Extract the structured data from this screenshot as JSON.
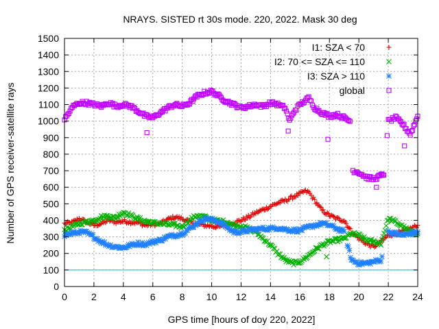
{
  "chart_data": {
    "type": "scatter",
    "title": "NRAYS. SISTED rt 30s mode. 220, 2022. Mask 30 deg",
    "xlabel": "GPS time [hours of doy 220, 2022]",
    "ylabel": "Number of GPS receiver-satellite rays",
    "xlim": [
      0,
      24
    ],
    "ylim": [
      0,
      1500
    ],
    "xticks": [
      "0",
      "2",
      "4",
      "6",
      "8",
      "10",
      "12",
      "14",
      "16",
      "18",
      "20",
      "22",
      "24"
    ],
    "yticks": [
      "0",
      "100",
      "200",
      "300",
      "400",
      "500",
      "600",
      "700",
      "800",
      "900",
      "1000",
      "1100",
      "1200",
      "1300",
      "1400",
      "1500"
    ],
    "grid": true,
    "legend_position": "top-right",
    "reference_line": {
      "y": 100,
      "color": "#00c0d0"
    },
    "series": [
      {
        "name": "I1: SZA < 70",
        "marker": "+",
        "color": "#e00000",
        "x": [
          0,
          0.5,
          1,
          1.5,
          2,
          2.5,
          3,
          3.5,
          4,
          4.5,
          5,
          5.5,
          6,
          6.5,
          7,
          7.5,
          8,
          8.5,
          9,
          9.5,
          10,
          10.5,
          11,
          11.5,
          12,
          12.5,
          13,
          13.5,
          14,
          14.5,
          15,
          15.5,
          16,
          16.3,
          16.6,
          17,
          17.5,
          18,
          18.5,
          19,
          19.5,
          20,
          20.5,
          21,
          21.5,
          22,
          22.5,
          23,
          23.5,
          24
        ],
        "y": [
          380,
          385,
          410,
          390,
          370,
          380,
          400,
          390,
          395,
          390,
          385,
          370,
          375,
          380,
          405,
          420,
          410,
          390,
          380,
          370,
          365,
          360,
          370,
          385,
          400,
          420,
          445,
          465,
          485,
          505,
          520,
          540,
          560,
          575,
          570,
          520,
          460,
          430,
          410,
          400,
          330,
          290,
          260,
          240,
          270,
          310,
          320,
          330,
          350,
          370
        ]
      },
      {
        "name": "I2: 70 <= SZA <= 110",
        "marker": "x",
        "color": "#00b000",
        "x": [
          0,
          0.5,
          1,
          1.5,
          2,
          2.5,
          3,
          3.5,
          4,
          4.5,
          5,
          5.5,
          6,
          6.5,
          7,
          7.5,
          8,
          8.5,
          9,
          9.5,
          10,
          10.5,
          11,
          11.5,
          12,
          12.5,
          13,
          13.5,
          14,
          14.5,
          15,
          15.5,
          16,
          16.5,
          17,
          17.5,
          18,
          18.5,
          19,
          19.5,
          20,
          20.5,
          21,
          21.5,
          22,
          22.5,
          23,
          23.5,
          24
        ],
        "y": [
          340,
          360,
          380,
          390,
          400,
          420,
          425,
          415,
          450,
          430,
          410,
          395,
          385,
          380,
          375,
          370,
          360,
          400,
          430,
          420,
          400,
          395,
          390,
          370,
          365,
          350,
          330,
          290,
          250,
          200,
          160,
          140,
          150,
          180,
          220,
          250,
          270,
          280,
          290,
          320,
          310,
          280,
          270,
          260,
          410,
          390,
          360,
          330,
          320
        ]
      },
      {
        "name": "I3: SZA > 110",
        "marker": "*",
        "color": "#2080ff",
        "x": [
          0,
          0.5,
          1,
          1.5,
          2,
          2.5,
          3,
          3.5,
          4,
          4.5,
          5,
          5.5,
          6,
          6.5,
          7,
          7.5,
          8,
          8.5,
          9,
          9.5,
          10,
          10.5,
          11,
          11.5,
          12,
          12.5,
          13,
          13.5,
          14,
          14.5,
          15,
          15.5,
          16,
          16.5,
          17,
          17.5,
          18,
          18.5,
          19,
          19.5,
          20,
          20.5,
          21,
          21.5,
          22,
          22.5,
          23,
          23.5,
          24
        ],
        "y": [
          310,
          320,
          330,
          325,
          300,
          270,
          250,
          240,
          235,
          250,
          260,
          255,
          270,
          280,
          300,
          310,
          320,
          350,
          380,
          410,
          405,
          390,
          360,
          330,
          330,
          340,
          345,
          350,
          350,
          355,
          345,
          340,
          340,
          355,
          370,
          380,
          370,
          350,
          330,
          160,
          140,
          140,
          150,
          160,
          330,
          320,
          310,
          320,
          330
        ]
      },
      {
        "name": "global",
        "marker": "square",
        "color": "#c000ff",
        "x": [
          0,
          0.3,
          0.6,
          1,
          1.5,
          2,
          2.5,
          3,
          3.5,
          4,
          4.5,
          5,
          5.5,
          6,
          6.5,
          7,
          7.5,
          8,
          8.5,
          9,
          9.5,
          10,
          10.5,
          11,
          11.5,
          12,
          12.5,
          13,
          13.5,
          14,
          14.5,
          15,
          15.3,
          15.6,
          16,
          16.3,
          16.6,
          17,
          17.5,
          18,
          18.5,
          19,
          19.4,
          19.6,
          20,
          20.5,
          21,
          21.5,
          21.7,
          22,
          22.5,
          23,
          23.5,
          24
        ],
        "y": [
          1010,
          1050,
          1090,
          1110,
          1110,
          1100,
          1090,
          1110,
          1090,
          1100,
          1090,
          1060,
          1030,
          1020,
          1050,
          1080,
          1100,
          1090,
          1110,
          1150,
          1170,
          1180,
          1150,
          1120,
          1100,
          1080,
          1090,
          1100,
          1090,
          1110,
          1100,
          1080,
          1000,
          1060,
          1100,
          1120,
          1140,
          1080,
          1050,
          1030,
          1040,
          1020,
          1000,
          700,
          690,
          660,
          650,
          670,
          680,
          1000,
          1020,
          980,
          920,
          1030
        ]
      }
    ],
    "extra_points": [
      {
        "series": "global",
        "x": 5.6,
        "y": 930
      },
      {
        "series": "global",
        "x": 15.2,
        "y": 940
      },
      {
        "series": "global",
        "x": 17.9,
        "y": 890
      },
      {
        "series": "global",
        "x": 21.2,
        "y": 600
      },
      {
        "series": "global",
        "x": 23.1,
        "y": 850
      },
      {
        "series": "I2: 70 <= SZA <= 110",
        "x": 17.8,
        "y": 180
      }
    ]
  }
}
